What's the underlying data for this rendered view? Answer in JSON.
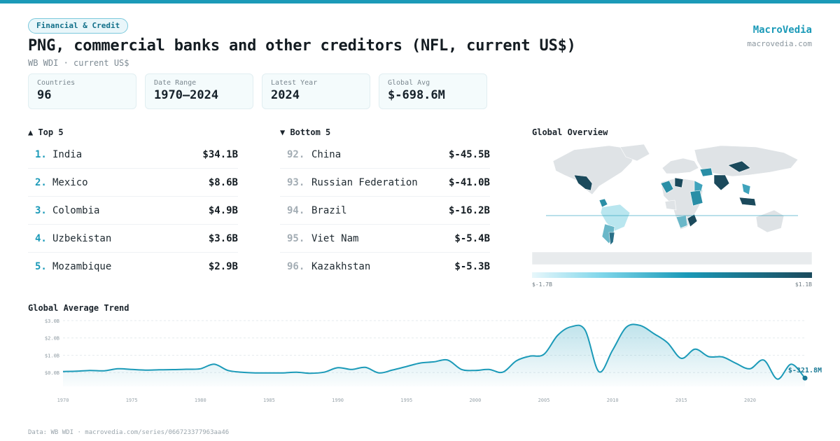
{
  "theme": {
    "accent": "#1b9ab8",
    "dark": "#1b4a5c",
    "negative": "#e3e7ea"
  },
  "header": {
    "badge": "Financial & Credit",
    "title": "PNG, commercial banks and other creditors (NFL, current US$)",
    "subtitle": "WB WDI · current US$",
    "brand": "MacroVedia",
    "brand_url": "macrovedia.com"
  },
  "stats": [
    {
      "label": "Countries",
      "value": "96"
    },
    {
      "label": "Date Range",
      "value": "1970–2024"
    },
    {
      "label": "Latest Year",
      "value": "2024"
    },
    {
      "label": "Global Avg",
      "value": "$-698.6M"
    }
  ],
  "top5": {
    "heading": "▲ Top 5",
    "items": [
      {
        "rank": "1.",
        "name": "India",
        "value": "$34.1B"
      },
      {
        "rank": "2.",
        "name": "Mexico",
        "value": "$8.6B"
      },
      {
        "rank": "3.",
        "name": "Colombia",
        "value": "$4.9B"
      },
      {
        "rank": "4.",
        "name": "Uzbekistan",
        "value": "$3.6B"
      },
      {
        "rank": "5.",
        "name": "Mozambique",
        "value": "$2.9B"
      }
    ]
  },
  "bottom5": {
    "heading": "▼ Bottom 5",
    "items": [
      {
        "rank": "92.",
        "name": "China",
        "value": "$-45.5B"
      },
      {
        "rank": "93.",
        "name": "Russian Federation",
        "value": "$-41.0B"
      },
      {
        "rank": "94.",
        "name": "Brazil",
        "value": "$-16.2B"
      },
      {
        "rank": "95.",
        "name": "Viet Nam",
        "value": "$-5.4B"
      },
      {
        "rank": "96.",
        "name": "Kazakhstan",
        "value": "$-5.3B"
      }
    ]
  },
  "map": {
    "heading": "Global Overview",
    "legend_min": "$-1.7B",
    "legend_max": "$1.1B"
  },
  "trend": {
    "heading": "Global Average Trend",
    "last_label": "$-321.8M"
  },
  "footer": "Data: WB WDI · macrovedia.com/series/066723377963aa46",
  "chart_data": {
    "type": "area",
    "xlabel": "",
    "ylabel": "",
    "xlim": [
      1970,
      2024
    ],
    "ylim": [
      -0.8,
      3.0
    ],
    "y_ticks": [
      0,
      1,
      2,
      3
    ],
    "y_tick_labels": [
      "$0.0B",
      "$1.0B",
      "$2.0B",
      "$3.0B"
    ],
    "x_ticks": [
      1970,
      1975,
      1980,
      1985,
      1990,
      1995,
      2000,
      2005,
      2010,
      2015,
      2020
    ],
    "x_tick_labels": [
      "1970",
      "1975",
      "1980",
      "1985",
      "1990",
      "1995",
      "2000",
      "2005",
      "2010",
      "2015",
      "2020"
    ],
    "grid": true,
    "x": [
      1970,
      1971,
      1972,
      1973,
      1974,
      1975,
      1976,
      1977,
      1978,
      1979,
      1980,
      1981,
      1982,
      1983,
      1984,
      1985,
      1986,
      1987,
      1988,
      1989,
      1990,
      1991,
      1992,
      1993,
      1994,
      1995,
      1996,
      1997,
      1998,
      1999,
      2000,
      2001,
      2002,
      2003,
      2004,
      2005,
      2006,
      2007,
      2008,
      2009,
      2010,
      2011,
      2012,
      2013,
      2014,
      2015,
      2016,
      2017,
      2018,
      2019,
      2020,
      2021,
      2022,
      2023,
      2024
    ],
    "y": [
      0.06,
      0.08,
      0.12,
      0.1,
      0.22,
      0.18,
      0.14,
      0.16,
      0.17,
      0.19,
      0.22,
      0.48,
      0.12,
      0.02,
      -0.02,
      -0.02,
      -0.02,
      0.02,
      -0.04,
      0.02,
      0.28,
      0.18,
      0.3,
      -0.02,
      0.15,
      0.35,
      0.55,
      0.62,
      0.72,
      0.18,
      0.12,
      0.18,
      0.02,
      0.68,
      0.95,
      1.05,
      2.15,
      2.65,
      2.45,
      0.05,
      1.3,
      2.62,
      2.72,
      2.25,
      1.72,
      0.82,
      1.35,
      0.92,
      0.9,
      0.52,
      0.22,
      0.72,
      -0.38,
      0.48,
      -0.32
    ]
  }
}
